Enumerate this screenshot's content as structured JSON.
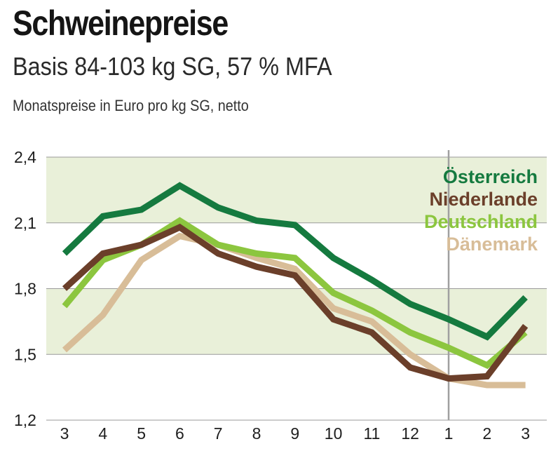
{
  "header": {
    "title": "Schweinepreise",
    "subtitle": "Basis 84-103 kg SG, 57 % MFA",
    "unit_label": "Monatspreise in Euro pro kg SG, netto"
  },
  "chart_data": {
    "type": "line",
    "title": "Schweinepreise",
    "subtitle": "Basis 84-103 kg SG, 57 % MFA",
    "ylabel": "Monatspreise in Euro pro kg SG, netto",
    "xlabel": "",
    "categories": [
      "3",
      "4",
      "5",
      "6",
      "7",
      "8",
      "9",
      "10",
      "11",
      "12",
      "1",
      "2",
      "3"
    ],
    "ylim": [
      1.2,
      2.4
    ],
    "yticks": [
      {
        "value": 2.4,
        "label": "2,4"
      },
      {
        "value": 2.1,
        "label": "2,1"
      },
      {
        "value": 1.8,
        "label": "1,8"
      },
      {
        "value": 1.5,
        "label": "1,5"
      },
      {
        "value": 1.2,
        "label": "1,2"
      }
    ],
    "bands": [
      [
        1.5,
        1.8
      ],
      [
        2.1,
        2.4
      ]
    ],
    "band_color": "#e9f0d9",
    "year_divider_at": "1",
    "series": [
      {
        "name": "Dänemark",
        "color": "#d8bd98",
        "values": [
          1.52,
          1.68,
          1.93,
          2.04,
          2.0,
          1.94,
          1.89,
          1.71,
          1.65,
          1.5,
          1.39,
          1.36,
          1.36
        ]
      },
      {
        "name": "Deutschland",
        "color": "#8cc63f",
        "values": [
          1.72,
          1.93,
          2.0,
          2.11,
          2.0,
          1.96,
          1.94,
          1.78,
          1.7,
          1.6,
          1.53,
          1.45,
          1.6
        ]
      },
      {
        "name": "Niederlande",
        "color": "#6b3f2a",
        "values": [
          1.8,
          1.96,
          2.0,
          2.08,
          1.96,
          1.9,
          1.86,
          1.66,
          1.6,
          1.44,
          1.39,
          1.4,
          1.63
        ]
      },
      {
        "name": "Österreich",
        "color": "#157a3f",
        "values": [
          1.96,
          2.13,
          2.16,
          2.27,
          2.17,
          2.11,
          2.09,
          1.94,
          1.84,
          1.73,
          1.66,
          1.58,
          1.76
        ]
      }
    ],
    "legend": [
      {
        "name": "Österreich",
        "color": "#157a3f"
      },
      {
        "name": "Niederlande",
        "color": "#6b3f2a"
      },
      {
        "name": "Deutschland",
        "color": "#8cc63f"
      },
      {
        "name": "Dänemark",
        "color": "#d8bd98"
      }
    ],
    "legend_position": "top-right"
  }
}
